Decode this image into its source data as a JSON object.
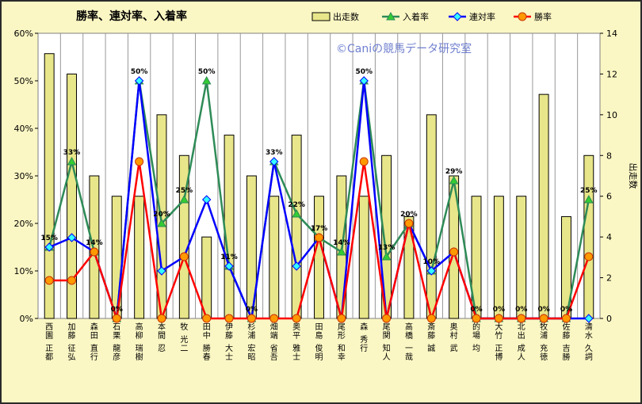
{
  "chart_data": {
    "type": "bar+line",
    "title": "勝率、連対率、入着率",
    "watermark": "©Caniの競馬データ研究室",
    "ylabel_right": "出走数",
    "y_left": {
      "min": 0,
      "max": 60,
      "step": 10,
      "tick_labels": [
        "0%",
        "10%",
        "20%",
        "30%",
        "40%",
        "50%",
        "60%"
      ]
    },
    "y_right": {
      "min": 0,
      "max": 14,
      "step": 2,
      "tick_labels": [
        "0",
        "2",
        "4",
        "6",
        "8",
        "10",
        "12",
        "14"
      ]
    },
    "legend_position": "top",
    "grid": "vertical",
    "categories": [
      "西園 正都",
      "加藤 征弘",
      "森田 直行",
      "石栗 龍彦",
      "高柳 瑞樹",
      "本間 忍",
      "牧 光二",
      "田中 勝春",
      "伊藤 大士",
      "杉浦 宏昭",
      "畑端 省吾",
      "奥平 雅士",
      "田島 俊明",
      "尾形 和幸",
      "森 秀行",
      "尾関 知人",
      "高橋 一哉",
      "斎藤 誠",
      "奥村 武",
      "的場 均",
      "大竹 正博",
      "北出 成人",
      "牧浦 充徳",
      "佐藤 吉勝",
      "清水 久詞"
    ],
    "series": [
      {
        "name": "出走数",
        "type": "bar",
        "axis": "right",
        "color": "#e8e68a",
        "values": [
          13,
          12,
          7,
          6,
          6,
          10,
          8,
          4,
          9,
          7,
          6,
          9,
          6,
          7,
          6,
          8,
          5,
          10,
          7,
          6,
          6,
          6,
          11,
          5,
          8
        ]
      },
      {
        "name": "入着率",
        "type": "line",
        "axis": "left",
        "color": "#2e8b57",
        "marker": "triangle",
        "values": [
          15,
          33,
          14,
          0,
          50,
          20,
          25,
          50,
          11,
          0,
          33,
          22,
          17,
          14,
          50,
          13,
          20,
          10,
          29,
          0,
          0,
          0,
          0,
          0,
          25
        ]
      },
      {
        "name": "連対率",
        "type": "line",
        "axis": "left",
        "color": "#0000ff",
        "marker": "diamond",
        "values": [
          15,
          17,
          14,
          0,
          50,
          10,
          13,
          25,
          11,
          0,
          33,
          11,
          17,
          0,
          50,
          0,
          20,
          10,
          14,
          0,
          0,
          0,
          0,
          0,
          0
        ]
      },
      {
        "name": "勝率",
        "type": "line",
        "axis": "left",
        "color": "#ff0000",
        "marker": "circle",
        "values": [
          8,
          8,
          14,
          0,
          33,
          0,
          13,
          0,
          0,
          0,
          0,
          0,
          17,
          0,
          33,
          0,
          20,
          0,
          14,
          0,
          0,
          0,
          0,
          0,
          13
        ]
      }
    ],
    "data_labels": [
      "15%",
      "33%",
      "14%",
      "0%",
      "50%",
      "20%",
      "25%",
      "50%",
      "11%",
      "0%",
      "33%",
      "22%",
      "17%",
      "14%",
      "50%",
      "13%",
      "20%",
      "10%",
      "29%",
      "0%",
      "0%",
      "0%",
      "0%",
      "0%",
      "25%"
    ]
  }
}
